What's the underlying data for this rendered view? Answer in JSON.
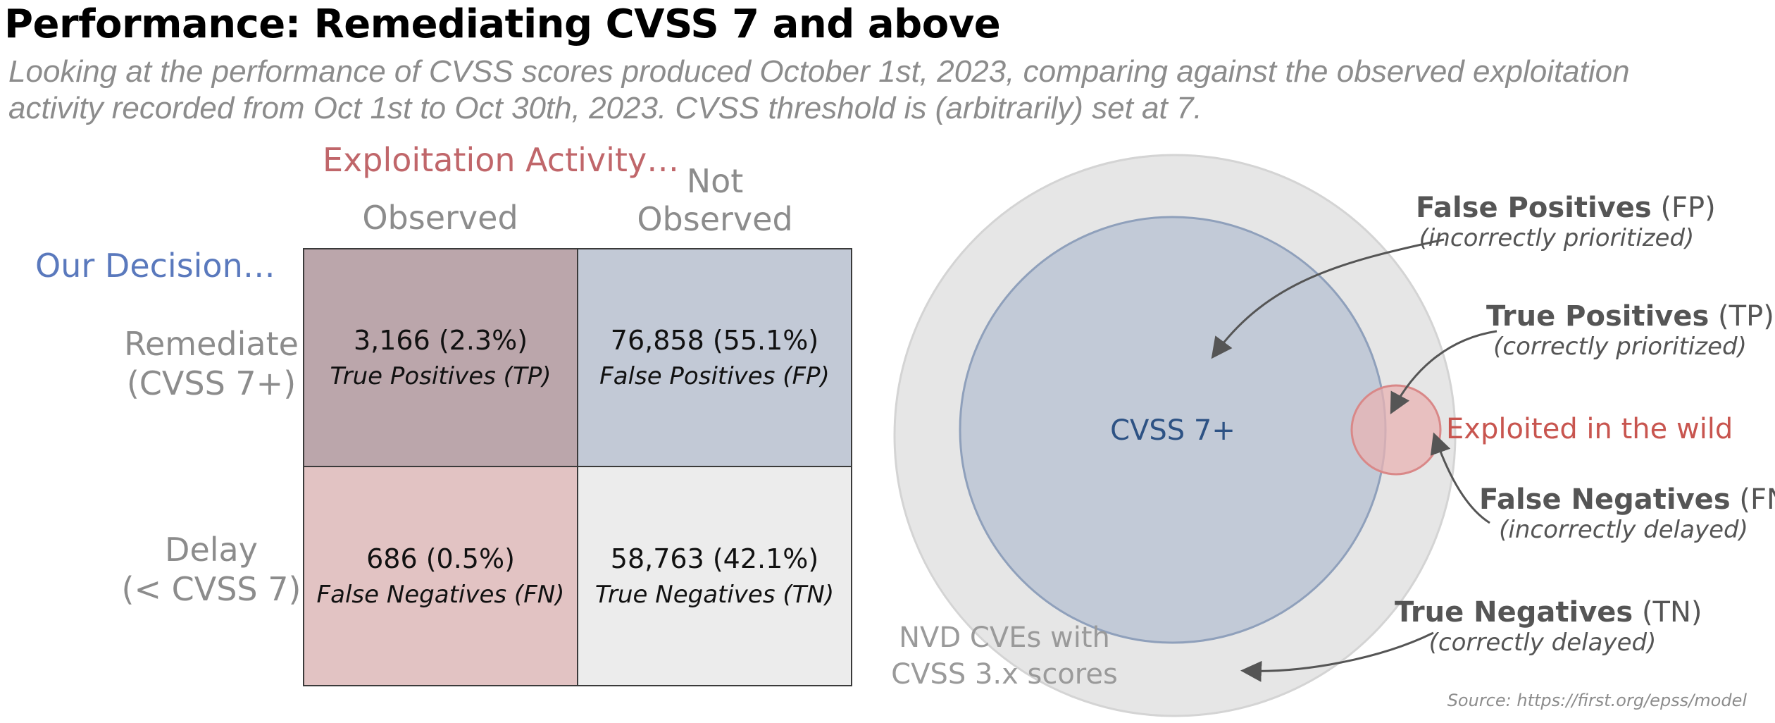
{
  "title": "Performance: Remediating CVSS 7 and above",
  "subtitle": "Looking at the performance of CVSS scores produced October 1st, 2023, comparing against the observed exploitation activity recorded from Oct 1st to Oct 30th, 2023. CVSS threshold is (arbitrarily) set at 7.",
  "matrix": {
    "exploitation_heading": "Exploitation Activity…",
    "col_observed": "Observed",
    "col_not_observed_1": "Not",
    "col_not_observed_2": "Observed",
    "decision_heading": "Our Decision…",
    "row_remediate_1": "Remediate",
    "row_remediate_2": "(CVSS 7+)",
    "row_delay_1": "Delay",
    "row_delay_2": "(< CVSS 7)",
    "tp": {
      "count": "3,166 (2.3%)",
      "label": "True Positives (TP)"
    },
    "fp": {
      "count": "76,858 (55.1%)",
      "label": "False Positives (FP)"
    },
    "fn": {
      "count": "686 (0.5%)",
      "label": "False Negatives (FN)"
    },
    "tn": {
      "count": "58,763 (42.1%)",
      "label": "True Negatives (TN)"
    }
  },
  "venn": {
    "cvss_label": "CVSS 7+",
    "exploited_label": "Exploited in the wild",
    "nvd_label_1": "NVD CVEs with",
    "nvd_label_2": "CVSS 3.x scores",
    "fp_title": "False Positives",
    "fp_abbr": "(FP)",
    "fp_sub": "(incorrectly prioritized)",
    "tp_title": "True Positives",
    "tp_abbr": "(TP)",
    "tp_sub": "(correctly prioritized)",
    "fn_title": "False Negatives",
    "fn_abbr": "(FN)",
    "fn_sub": "(incorrectly delayed)",
    "tn_title": "True Negatives",
    "tn_abbr": "(TN)",
    "tn_sub": "(correctly delayed)"
  },
  "source": "Source: https://first.org/epss/model",
  "colors": {
    "tp_cell": "#bba6ab",
    "fp_cell": "#c2c9d6",
    "fn_cell": "#e2c3c3",
    "tn_cell": "#ececec",
    "outer_circle": "#e6e6e6",
    "cvss_circle": "#c2cad7",
    "exploited_circle": "#e8b3b3"
  }
}
